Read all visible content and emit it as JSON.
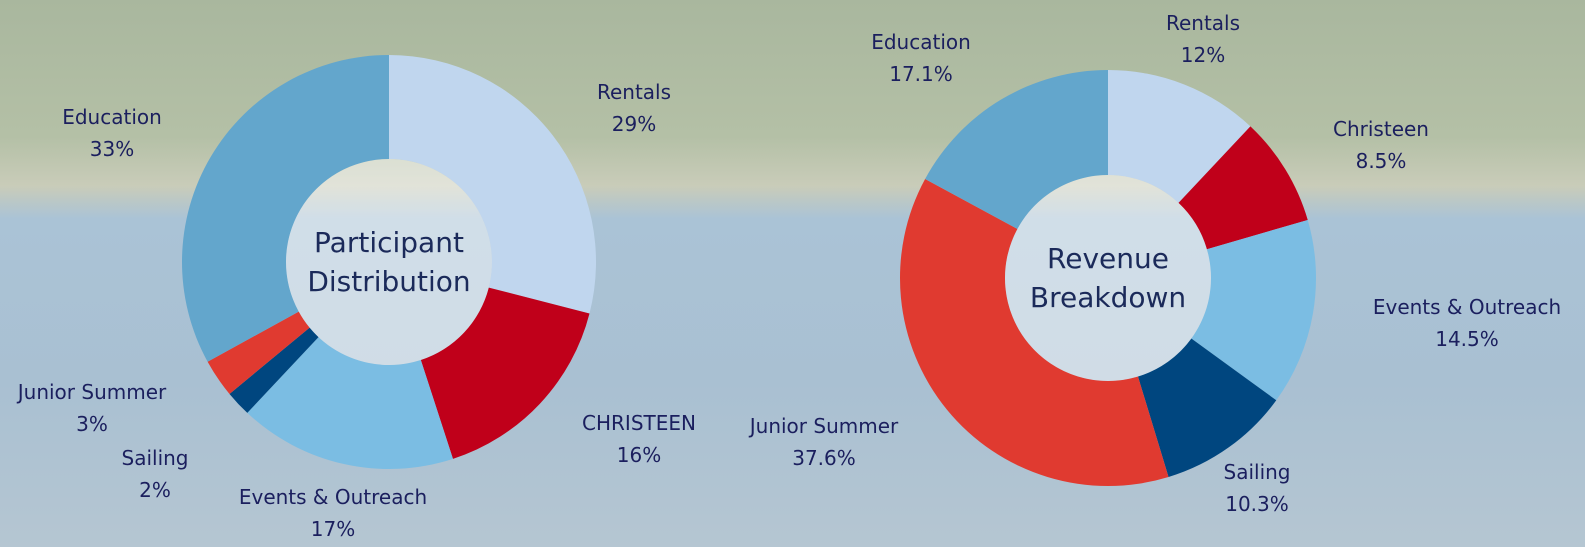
{
  "chart_data": [
    {
      "type": "donut",
      "title": "Participant Distribution",
      "categories": [
        "Rentals",
        "CHRISTEEN",
        "Events & Outreach",
        "Sailing",
        "Junior Summer",
        "Education"
      ],
      "values": [
        29,
        16,
        17,
        2,
        3,
        33
      ],
      "value_labels": [
        "29%",
        "16%",
        "17%",
        "2%",
        "3%",
        "33%"
      ],
      "colors": [
        "#c0d6ee",
        "#c0001a",
        "#7bbde3",
        "#00467f",
        "#e03a30",
        "#63a6cc"
      ]
    },
    {
      "type": "donut",
      "title": "Revenue Breakdown",
      "categories": [
        "Rentals",
        "Christeen",
        "Events & Outreach",
        "Sailing",
        "Junior Summer",
        "Education"
      ],
      "values": [
        12,
        8.5,
        14.5,
        10.3,
        37.6,
        17.1
      ],
      "value_labels": [
        "12%",
        "8.5%",
        "14.5%",
        "10.3%",
        "37.6%",
        "17.1%"
      ],
      "colors": [
        "#c0d6ee",
        "#c0001a",
        "#7bbde3",
        "#00467f",
        "#e03a30",
        "#63a6cc"
      ]
    }
  ]
}
